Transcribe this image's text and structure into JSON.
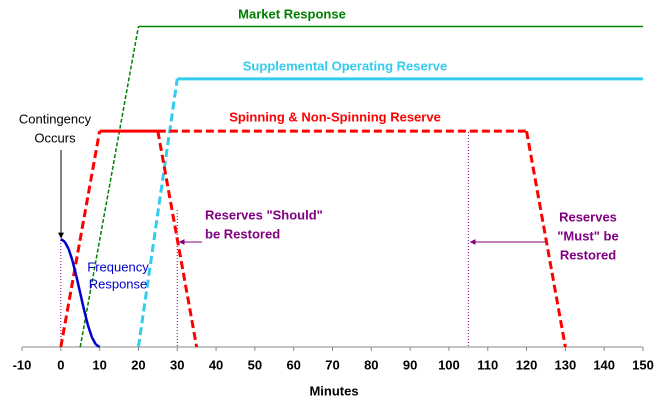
{
  "chart_data": {
    "type": "line",
    "xlabel": "Minutes",
    "xlim": [
      -10,
      150
    ],
    "xticks": [
      -10,
      0,
      10,
      20,
      30,
      40,
      50,
      60,
      70,
      80,
      90,
      100,
      110,
      120,
      130,
      140,
      150
    ],
    "ylim": [
      0,
      100
    ],
    "series": [
      {
        "name": "Market Response",
        "color": "#008000",
        "width": 1.5,
        "x": [
          5,
          20,
          150
        ],
        "values": [
          0,
          98,
          98
        ],
        "segment_styles": [
          "dashed",
          "solid"
        ]
      },
      {
        "name": "Supplemental Operating Reserve",
        "color": "#33ccee",
        "width": 3,
        "x": [
          20,
          30,
          150
        ],
        "values": [
          0,
          82,
          82
        ],
        "segment_styles": [
          "dashed",
          "solid"
        ]
      },
      {
        "name": "Spinning & Non-Spinning Reserve",
        "color": "#ff0000",
        "width": 3,
        "x": [
          0,
          10,
          25,
          35,
          null,
          25,
          120,
          130
        ],
        "values": [
          0,
          66,
          66,
          0,
          null,
          66,
          66,
          0
        ],
        "segment_styles": [
          "dashed",
          "solid",
          "dashed",
          null,
          null,
          "dashed",
          "dashed"
        ]
      },
      {
        "name": [
          "Frequency",
          "Response"
        ],
        "color": "#0000cc",
        "width": 2.5,
        "x": [
          0,
          1,
          2,
          3,
          4,
          5,
          6,
          7,
          8,
          9,
          10
        ],
        "values": [
          33,
          32.2,
          30,
          26.4,
          21.7,
          16.5,
          11.3,
          6.6,
          3,
          0.8,
          0
        ],
        "segment_styles": [
          "solid",
          "solid",
          "solid",
          "solid",
          "solid",
          "solid",
          "solid",
          "solid",
          "solid",
          "solid"
        ]
      }
    ],
    "reference_lines": {
      "color": "#800080",
      "x": [
        0,
        30,
        105
      ]
    },
    "annotations": [
      {
        "lines": [
          "Contingency",
          "Occurs"
        ],
        "color": "#000000"
      },
      {
        "lines": [
          "Reserves \"Should\"",
          "be Restored"
        ],
        "color": "#800080"
      },
      {
        "lines": [
          "Reserves",
          "\"Must\" be",
          "Restored"
        ],
        "color": "#800080"
      }
    ]
  }
}
